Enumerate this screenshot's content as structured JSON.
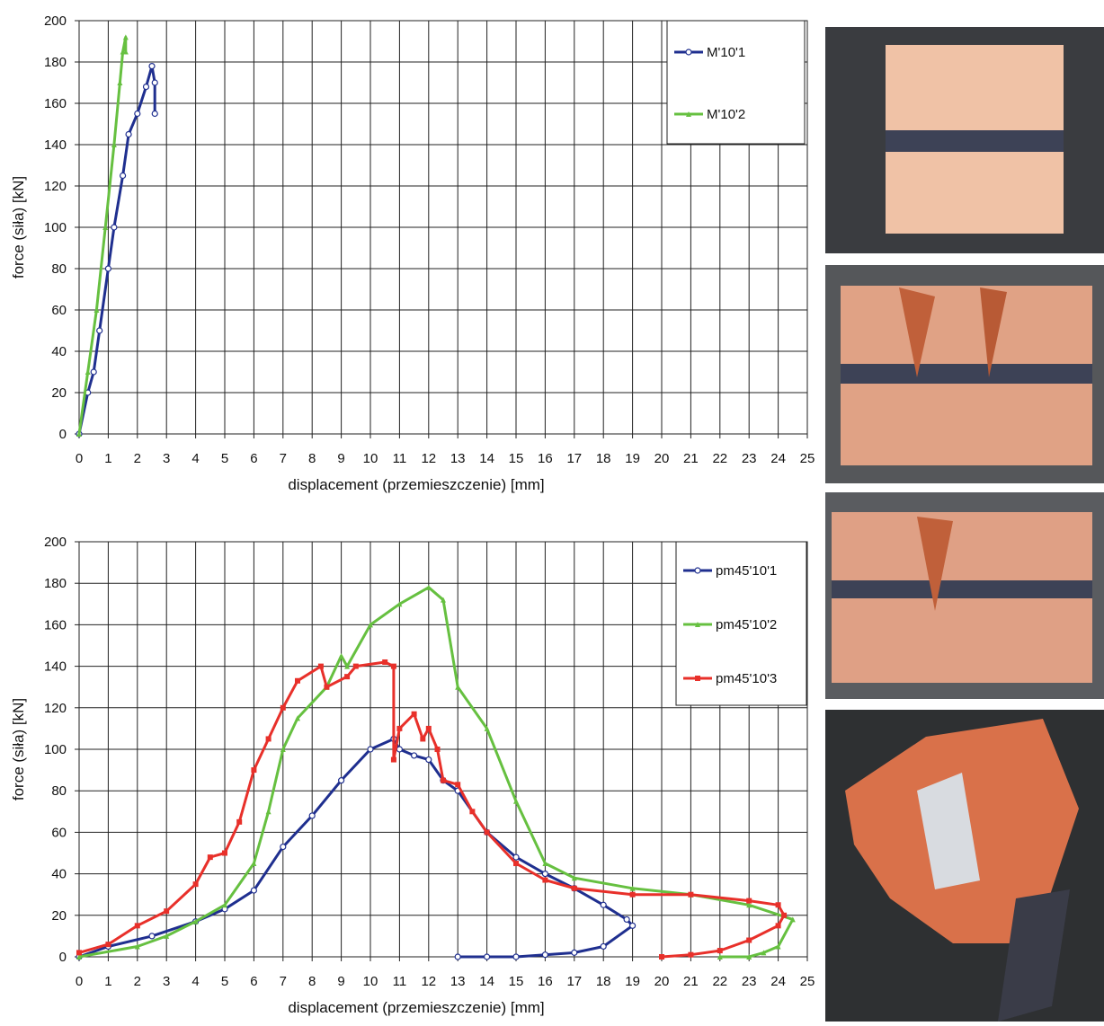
{
  "chart_data": [
    {
      "type": "line",
      "xlabel": "displacement (przemieszczenie) [mm]",
      "ylabel": "force (siła) [kN]",
      "xlim": [
        0,
        25
      ],
      "ylim": [
        0,
        200
      ],
      "xticks": [
        0,
        1,
        2,
        3,
        4,
        5,
        6,
        7,
        8,
        9,
        10,
        11,
        12,
        13,
        14,
        15,
        16,
        17,
        18,
        19,
        20,
        21,
        22,
        23,
        24,
        25
      ],
      "yticks": [
        0,
        20,
        40,
        60,
        80,
        100,
        120,
        140,
        160,
        180,
        200
      ],
      "grid": true,
      "legend": "upper right",
      "series": [
        {
          "name": "M'10'1",
          "color": "#1f2f8f",
          "marker": "circle",
          "x": [
            0,
            0.3,
            0.5,
            0.7,
            1,
            1.2,
            1.5,
            1.7,
            2,
            2.3,
            2.5,
            2.6,
            2.6
          ],
          "values": [
            0,
            20,
            30,
            50,
            80,
            100,
            125,
            145,
            155,
            168,
            178,
            170,
            155
          ]
        },
        {
          "name": "M'10'2",
          "color": "#66c040",
          "marker": "triangle",
          "x": [
            0,
            0.3,
            0.6,
            0.9,
            1.2,
            1.4,
            1.5,
            1.6,
            1.6
          ],
          "values": [
            0,
            30,
            60,
            100,
            140,
            170,
            185,
            192,
            185
          ]
        }
      ]
    },
    {
      "type": "line",
      "xlabel": "displacement (przemieszczenie) [mm]",
      "ylabel": "force (siła) [kN]",
      "xlim": [
        0,
        25
      ],
      "ylim": [
        0,
        200
      ],
      "xticks": [
        0,
        1,
        2,
        3,
        4,
        5,
        6,
        7,
        8,
        9,
        10,
        11,
        12,
        13,
        14,
        15,
        16,
        17,
        18,
        19,
        20,
        21,
        22,
        23,
        24,
        25
      ],
      "yticks": [
        0,
        20,
        40,
        60,
        80,
        100,
        120,
        140,
        160,
        180,
        200
      ],
      "grid": true,
      "legend": "upper right",
      "series": [
        {
          "name": "pm45'10'1",
          "color": "#1f2f8f",
          "marker": "circle",
          "x": [
            0,
            1,
            2.5,
            4,
            5,
            6,
            7,
            8,
            9,
            10,
            10.8,
            11,
            11.5,
            12,
            12.5,
            13,
            14,
            15,
            16,
            17,
            18,
            18.8,
            19,
            18,
            17,
            16,
            15,
            14,
            13
          ],
          "values": [
            0,
            5,
            10,
            17,
            23,
            32,
            53,
            68,
            85,
            100,
            105,
            100,
            97,
            95,
            85,
            80,
            60,
            48,
            40,
            33,
            25,
            18,
            15,
            5,
            2,
            1,
            0,
            0,
            0
          ]
        },
        {
          "name": "pm45'10'2",
          "color": "#66c040",
          "marker": "triangle",
          "x": [
            0,
            2,
            3,
            4,
            5,
            6,
            6.5,
            7,
            7.5,
            8.5,
            9,
            9.2,
            10,
            11,
            12,
            12.5,
            13,
            14,
            15,
            16,
            17,
            19,
            21,
            23,
            24.5,
            24,
            23.5,
            23,
            22
          ],
          "values": [
            0,
            5,
            10,
            17,
            25,
            45,
            70,
            100,
            115,
            130,
            145,
            140,
            160,
            170,
            178,
            172,
            130,
            110,
            75,
            45,
            38,
            33,
            30,
            25,
            18,
            5,
            2,
            0,
            0
          ]
        },
        {
          "name": "pm45'10'3",
          "color": "#e8302a",
          "marker": "square",
          "x": [
            0,
            1,
            2,
            3,
            4,
            4.5,
            5,
            5.5,
            6,
            6.5,
            7,
            7.5,
            8.3,
            8.5,
            9.2,
            9.5,
            10.5,
            10.8,
            10.8,
            11,
            11.5,
            11.8,
            12,
            12.3,
            12.5,
            13,
            13.5,
            14,
            15,
            16,
            17,
            19,
            21,
            23,
            24,
            24.2,
            24,
            23,
            22,
            21,
            20
          ],
          "values": [
            2,
            6,
            15,
            22,
            35,
            48,
            50,
            65,
            90,
            105,
            120,
            133,
            140,
            130,
            135,
            140,
            142,
            140,
            95,
            110,
            117,
            105,
            110,
            100,
            85,
            83,
            70,
            60,
            45,
            37,
            33,
            30,
            30,
            27,
            25,
            20,
            15,
            8,
            3,
            1,
            0
          ]
        }
      ]
    }
  ]
}
